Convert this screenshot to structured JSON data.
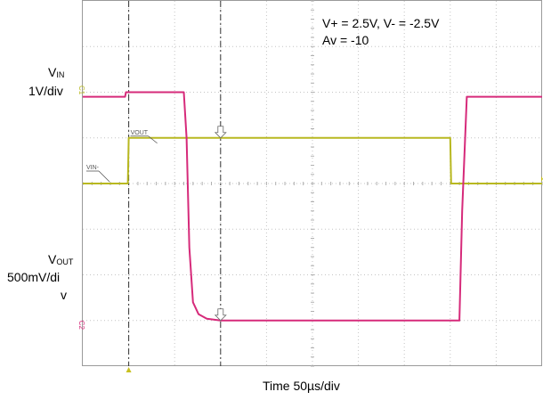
{
  "chart_data": {
    "type": "line",
    "xlabel": "Time 50µs/div",
    "conditions": [
      "V+ = 2.5V, V- = -2.5V",
      "Av = -10"
    ],
    "axes": {
      "left_top": {
        "name_main": "V",
        "name_sub": "IN",
        "scale": "1V/div"
      },
      "left_bottom": {
        "name_main": "V",
        "name_sub": "OUT",
        "scale_line1": "500mV/di",
        "scale_line2": "v"
      }
    },
    "channel_tags": [
      "C1",
      "C2"
    ],
    "divisions": {
      "x": 10,
      "y": 8
    },
    "x_unit_per_div_us": 50,
    "x_range_us": [
      0,
      500
    ],
    "cursors_us": [
      50,
      150
    ],
    "grid": true,
    "series": [
      {
        "name": "VIN",
        "trace_label": "VOUT",
        "baseline_label": "VIN-",
        "color": "#b8b820",
        "scale_v_per_div": 1,
        "reference_div_from_top": 4,
        "points": [
          [
            0,
            0
          ],
          [
            49,
            0
          ],
          [
            50,
            1
          ],
          [
            400,
            1
          ],
          [
            401,
            0
          ],
          [
            500,
            0
          ]
        ]
      },
      {
        "name": "VOUT",
        "color": "#d62a7a",
        "scale_v_per_div": 0.5,
        "reference_div_from_top": 7,
        "points": [
          [
            0,
            2.45
          ],
          [
            46,
            2.45
          ],
          [
            47,
            2.5
          ],
          [
            110,
            2.5
          ],
          [
            113,
            2.0
          ],
          [
            116,
            0.8
          ],
          [
            120,
            0.2
          ],
          [
            126,
            0.07
          ],
          [
            135,
            0.02
          ],
          [
            150,
            0
          ],
          [
            410,
            0
          ],
          [
            413,
            1.2
          ],
          [
            418,
            2.45
          ],
          [
            500,
            2.45
          ]
        ]
      }
    ]
  }
}
